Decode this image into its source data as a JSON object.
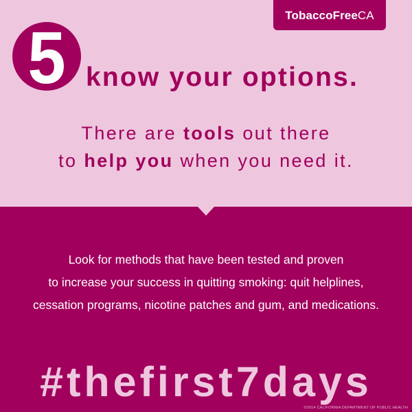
{
  "brand": {
    "bold": "TobaccoFree",
    "light": "CA"
  },
  "step": {
    "number": "5",
    "heading": "know your options."
  },
  "subhead": {
    "line1_pre": "There are ",
    "line1_bold": "tools",
    "line1_post": " out there",
    "line2_pre": "to ",
    "line2_bold": "help you",
    "line2_post": " when you need it."
  },
  "body": {
    "lines": [
      "Look for methods that have been tested and proven",
      "to increase your success in quitting smoking: quit helplines,",
      "cessation programs, nicotine patches and gum, and medications."
    ]
  },
  "hashtag": "#thefirst7days",
  "copyright": "©2014 CALIFORNIA DEPARTMENT OF PUBLIC HEALTH",
  "colors": {
    "magenta": "#a1005c",
    "light_pink": "#eec7df",
    "white": "#ffffff"
  }
}
